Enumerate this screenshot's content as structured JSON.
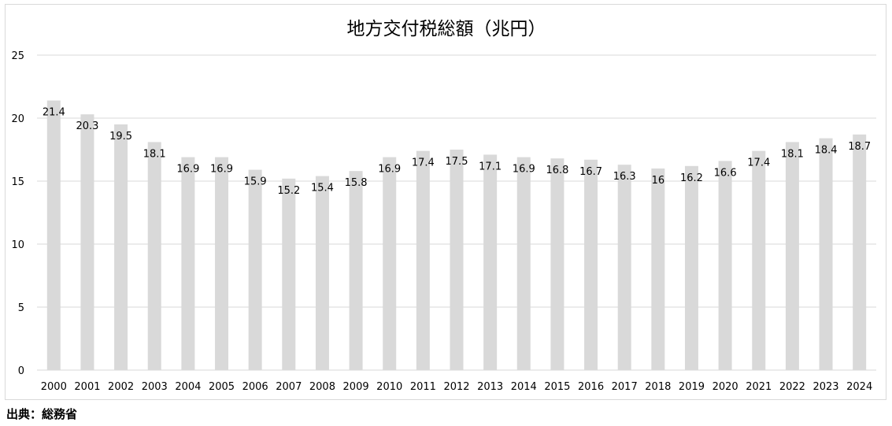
{
  "chart_data": {
    "type": "bar",
    "title": "地方交付税総額（兆円）",
    "xlabel": "",
    "ylabel": "",
    "ylim": [
      0,
      25
    ],
    "yticks": [
      0,
      5,
      10,
      15,
      20,
      25
    ],
    "grid": true,
    "legend": "none",
    "categories": [
      "2000",
      "2001",
      "2002",
      "2003",
      "2004",
      "2005",
      "2006",
      "2007",
      "2008",
      "2009",
      "2010",
      "2011",
      "2012",
      "2013",
      "2014",
      "2015",
      "2016",
      "2017",
      "2018",
      "2019",
      "2020",
      "2021",
      "2022",
      "2023",
      "2024"
    ],
    "values": [
      21.4,
      20.3,
      19.5,
      18.1,
      16.9,
      16.9,
      15.9,
      15.2,
      15.4,
      15.8,
      16.9,
      17.4,
      17.5,
      17.1,
      16.9,
      16.8,
      16.7,
      16.3,
      16,
      16.2,
      16.6,
      17.4,
      18.1,
      18.4,
      18.7
    ],
    "data_labels": [
      "21.4",
      "20.3",
      "19.5",
      "18.1",
      "16.9",
      "16.9",
      "15.9",
      "15.2",
      "15.4",
      "15.8",
      "16.9",
      "17.4",
      "17.5",
      "17.1",
      "16.9",
      "16.8",
      "16.7",
      "16.3",
      "16",
      "16.2",
      "16.6",
      "17.4",
      "18.1",
      "18.4",
      "18.7"
    ],
    "colors": {
      "bar": "#d9d9d9",
      "grid": "#d9d9d9",
      "text": "#000000"
    }
  },
  "footer": {
    "source": "出典：総務省"
  }
}
